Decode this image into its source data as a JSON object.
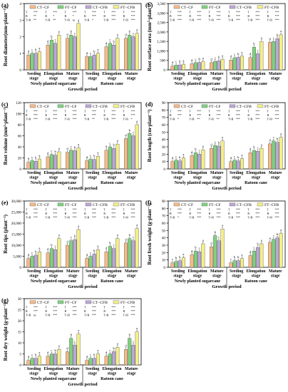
{
  "legend": [
    "CT−CF",
    "FT−CF",
    "CT−CFB",
    "FT−CFB"
  ],
  "colors": [
    "#f5b987",
    "#7fd17f",
    "#b9a8d8",
    "#f4ee8a"
  ],
  "stages": [
    "Seeding stage",
    "Elongation stage",
    "Mature stage"
  ],
  "groups": [
    "Newly planted sugarcane",
    "Ratoon cane"
  ],
  "xlabel": "Growth period",
  "chart_data": [
    {
      "type": "bar",
      "panel": "(a)",
      "ylabel": "Root diameter(mm·plant⁻¹)",
      "ylim": [
        0,
        4
      ],
      "yticks": [
        "0",
        "1",
        "2",
        "3",
        "4"
      ],
      "series": [
        {
          "name": "CT−CF",
          "values": [
            0.9,
            1.5,
            1.9,
            0.8,
            1.4,
            1.9
          ]
        },
        {
          "name": "FT−CF",
          "values": [
            1.0,
            1.8,
            2.1,
            0.8,
            1.6,
            2.1
          ]
        },
        {
          "name": "CT−CFB",
          "values": [
            1.0,
            1.6,
            2.0,
            0.9,
            1.5,
            2.0
          ]
        },
        {
          "name": "FT−CFB",
          "values": [
            1.1,
            2.1,
            2.8,
            1.0,
            1.9,
            2.2
          ]
        }
      ],
      "letters": [
        [
          "d",
          "c",
          "b",
          "a"
        ],
        [
          "d",
          "b",
          "c",
          "a"
        ],
        [
          "d",
          "b",
          "c",
          "a"
        ],
        [
          "d",
          "c",
          "b",
          "a"
        ],
        [
          "d",
          "c",
          "b",
          "a"
        ],
        [
          "d",
          "b",
          "c",
          "a"
        ]
      ],
      "stats": [
        [
          [
            "T",
            "***",
            "T",
            "***",
            "T",
            "***"
          ],
          [
            "B",
            "**",
            "B",
            "*",
            "B",
            "*"
          ],
          [
            "T×B",
            "**",
            "T×B",
            "**",
            "T×B",
            "ns"
          ]
        ],
        [
          [
            "T",
            "***",
            "T",
            "***",
            "T",
            "***"
          ],
          [
            "B",
            "***",
            "B",
            "***",
            "B",
            "***"
          ],
          [
            "T×B",
            "*",
            "T×B",
            "***",
            "T×B",
            "***"
          ]
        ]
      ]
    },
    {
      "type": "bar",
      "panel": "(b)",
      "ylabel": "Root surface area (mm²·plant⁻¹)",
      "ylim": [
        0,
        3500
      ],
      "yticks": [
        "0",
        "500",
        "1,000",
        "1,500",
        "2,000",
        "2,500",
        "3,000",
        "3,500"
      ],
      "series": [
        {
          "name": "CT−CF",
          "values": [
            200,
            320,
            380,
            520,
            650,
            1450
          ]
        },
        {
          "name": "FT−CF",
          "values": [
            250,
            380,
            450,
            640,
            1200,
            1500
          ]
        },
        {
          "name": "CT−CFB",
          "values": [
            260,
            390,
            480,
            660,
            850,
            1650
          ]
        },
        {
          "name": "FT−CFB",
          "values": [
            300,
            430,
            560,
            730,
            1500,
            1850
          ]
        }
      ],
      "letters": [
        [
          "d",
          "c",
          "b",
          "a"
        ],
        [
          "d",
          "c",
          "b",
          "a"
        ],
        [
          "d",
          "c",
          "b",
          "a"
        ],
        [
          "d",
          "c",
          "b",
          "a"
        ],
        [
          "d",
          "b",
          "c",
          "a"
        ],
        [
          "d",
          "c",
          "b",
          "a"
        ]
      ],
      "stats": [
        [
          [
            "T",
            "***",
            "T",
            "***",
            "T",
            "***"
          ],
          [
            "B",
            "***",
            "B",
            "***",
            "B",
            "***"
          ],
          [
            "T×B",
            "***",
            "T×B",
            "***",
            "T×B",
            "***"
          ]
        ],
        [
          [
            "T",
            "***",
            "T",
            "***",
            "T",
            "***"
          ],
          [
            "B",
            "***",
            "B",
            "***",
            "B",
            "***"
          ],
          [
            "T×B",
            "***",
            "T×B",
            "***",
            "T×B",
            "***"
          ]
        ]
      ]
    },
    {
      "type": "bar",
      "panel": "(c)",
      "ylabel": "Root volume (mm³·plant⁻¹)",
      "ylim": [
        0,
        120
      ],
      "yticks": [
        "0",
        "20",
        "40",
        "60",
        "80",
        "100",
        "120"
      ],
      "series": [
        {
          "name": "CT−CF",
          "values": [
            12,
            22,
            30,
            15,
            34,
            55
          ]
        },
        {
          "name": "FT−CF",
          "values": [
            15,
            26,
            34,
            18,
            40,
            64
          ]
        },
        {
          "name": "CT−CFB",
          "values": [
            14,
            25,
            33,
            17,
            37,
            60
          ]
        },
        {
          "name": "FT−CFB",
          "values": [
            18,
            31,
            38,
            23,
            45,
            80
          ]
        }
      ],
      "letters": [
        [
          "d",
          "c",
          "b",
          "a"
        ],
        [
          "d",
          "c",
          "b",
          "a"
        ],
        [
          "d",
          "c",
          "b",
          "a"
        ],
        [
          "d",
          "c",
          "b",
          "a"
        ],
        [
          "d",
          "c",
          "b",
          "a"
        ],
        [
          "d",
          "b",
          "c",
          "a"
        ]
      ],
      "stats": [
        [
          [
            "T",
            "***",
            "T",
            "***",
            "T",
            "***"
          ],
          [
            "B",
            "***",
            "B",
            "***",
            "B",
            "***"
          ],
          [
            "T×B",
            "***",
            "T×B",
            "***",
            "T×B",
            "***"
          ]
        ],
        [
          [
            "T",
            "***",
            "T",
            "***",
            "T",
            "***"
          ],
          [
            "B",
            "***",
            "B",
            "***",
            "B",
            "***"
          ],
          [
            "T×B",
            "**",
            "T×B",
            "***",
            "T×B",
            "*"
          ]
        ]
      ]
    },
    {
      "type": "bar",
      "panel": "(d)",
      "ylabel": "Root length (cm·plant⁻¹)",
      "ylim": [
        0,
        90
      ],
      "yticks": [
        "0",
        "10",
        "20",
        "30",
        "40",
        "50",
        "60",
        "70",
        "80",
        "90"
      ],
      "series": [
        {
          "name": "CT−CF",
          "values": [
            10,
            18,
            28,
            10,
            22,
            34
          ]
        },
        {
          "name": "FT−CF",
          "values": [
            12,
            22,
            32,
            12,
            25,
            38
          ]
        },
        {
          "name": "CT−CFB",
          "values": [
            11,
            20,
            31,
            11,
            24,
            36
          ]
        },
        {
          "name": "FT−CFB",
          "values": [
            15,
            26,
            38,
            14,
            28,
            43
          ]
        }
      ],
      "letters": [
        [
          "d",
          "c",
          "b",
          "a"
        ],
        [
          "d",
          "b",
          "c",
          "a"
        ],
        [
          "d",
          "c",
          "b",
          "a"
        ],
        [
          "d",
          "c",
          "b",
          "a"
        ],
        [
          "d",
          "b",
          "c",
          "a"
        ],
        [
          "d",
          "c",
          "b",
          "a"
        ]
      ],
      "stats": [
        [
          [
            "T",
            "***",
            "T",
            "***",
            "T",
            "***"
          ],
          [
            "B",
            "***",
            "B",
            "***",
            "B",
            "***"
          ],
          [
            "T×B",
            "*",
            "T×B",
            "**",
            "T×B",
            "**"
          ]
        ],
        [
          [
            "T",
            "***",
            "T",
            "***",
            "T",
            "***"
          ],
          [
            "B",
            "***",
            "B",
            "***",
            "B",
            "***"
          ],
          [
            "T×B",
            "***",
            "T×B",
            "***",
            "T×B",
            "***"
          ]
        ]
      ]
    },
    {
      "type": "bar",
      "panel": "(e)",
      "ylabel": "Root tips (plant⁻¹)",
      "ylim": [
        0,
        30000
      ],
      "yticks": [
        "0",
        "5,000",
        "10,000",
        "15,000",
        "20,000",
        "25,000",
        "30,000"
      ],
      "series": [
        {
          "name": "CT−CF",
          "values": [
            4000,
            6500,
            10000,
            4000,
            7000,
            11000
          ]
        },
        {
          "name": "FT−CF",
          "values": [
            5000,
            8500,
            12000,
            5000,
            9500,
            13000
          ]
        },
        {
          "name": "CT−CFB",
          "values": [
            5500,
            8000,
            12500,
            6000,
            8500,
            12000
          ]
        },
        {
          "name": "FT−CFB",
          "values": [
            7000,
            13000,
            17000,
            8000,
            13000,
            17500
          ]
        }
      ],
      "letters": [
        [
          "d",
          "c",
          "b",
          "a"
        ],
        [
          "d",
          "b",
          "c",
          "a"
        ],
        [
          "d",
          "c",
          "b",
          "a"
        ],
        [
          "d",
          "c",
          "b",
          "a"
        ],
        [
          "d",
          "b",
          "c",
          "a"
        ],
        [
          "d",
          "b",
          "c",
          "a"
        ]
      ],
      "stats": [
        [
          [
            "T",
            "***",
            "T",
            "***",
            "T",
            "***"
          ],
          [
            "B",
            "***",
            "B",
            "***",
            "B",
            "***"
          ],
          [
            "T×B",
            "***",
            "T×B",
            "***",
            "T×B",
            "***"
          ]
        ],
        [
          [
            "T",
            "***",
            "T",
            "***",
            "T",
            "***"
          ],
          [
            "B",
            "***",
            "B",
            "***",
            "B",
            "***"
          ],
          [
            "T×B",
            "***",
            "T×B",
            "***",
            "T×B",
            "***"
          ]
        ]
      ]
    },
    {
      "type": "bar",
      "panel": "(f)",
      "ylabel": "Root fresh weight (g·plant⁻¹)",
      "ylim": [
        0,
        90
      ],
      "yticks": [
        "0",
        "10",
        "20",
        "30",
        "40",
        "50",
        "60",
        "70",
        "80",
        "90"
      ],
      "series": [
        {
          "name": "CT−CF",
          "values": [
            6,
            17,
            28,
            6,
            16,
            34
          ]
        },
        {
          "name": "FT−CF",
          "values": [
            8,
            22,
            43,
            9,
            22,
            38
          ]
        },
        {
          "name": "CT−CFB",
          "values": [
            9,
            21,
            36,
            9,
            27,
            40
          ]
        },
        {
          "name": "FT−CFB",
          "values": [
            13,
            32,
            52,
            12,
            32,
            46
          ]
        }
      ],
      "letters": [
        [
          "c",
          "b",
          "b",
          "a"
        ],
        [
          "d",
          "b",
          "c",
          "a"
        ],
        [
          "d",
          "b",
          "c",
          "a"
        ],
        [
          "c",
          "b",
          "b",
          "a"
        ],
        [
          "d",
          "c",
          "b",
          "a"
        ],
        [
          "d",
          "c",
          "b",
          "a"
        ]
      ],
      "stats": [
        [
          [
            "T",
            "***",
            "T",
            "***",
            "T",
            "***"
          ],
          [
            "B",
            "***",
            "B",
            "***",
            "B",
            "***"
          ],
          [
            "T×B",
            "*",
            "T×B",
            "***",
            "T×B",
            "***"
          ]
        ],
        [
          [
            "T",
            "***",
            "T",
            "***",
            "T",
            "***"
          ],
          [
            "B",
            "***",
            "B",
            "***",
            "B",
            "***"
          ],
          [
            "T×B",
            "***",
            "T×B",
            "***",
            "T×B",
            "***"
          ]
        ]
      ]
    },
    {
      "type": "bar",
      "panel": "(g)",
      "ylabel": "Root dry weight (g·plant⁻¹)",
      "ylim": [
        0,
        30
      ],
      "yticks": [
        "0",
        "5",
        "10",
        "15",
        "20",
        "25",
        "30"
      ],
      "series": [
        {
          "name": "CT−CF",
          "values": [
            2,
            4,
            6,
            2,
            4,
            7
          ]
        },
        {
          "name": "FT−CF",
          "values": [
            3,
            5,
            12,
            3,
            5,
            12
          ]
        },
        {
          "name": "CT−CFB",
          "values": [
            3,
            5,
            9,
            3,
            6,
            9
          ]
        },
        {
          "name": "FT−CFB",
          "values": [
            4,
            7,
            14,
            5,
            8,
            15
          ]
        }
      ],
      "letters": [
        [
          "d",
          "c",
          "b",
          "a"
        ],
        [
          "d",
          "c",
          "b",
          "a"
        ],
        [
          "d",
          "b",
          "c",
          "a"
        ],
        [
          "d",
          "c",
          "b",
          "a"
        ],
        [
          "d",
          "c",
          "b",
          "a"
        ],
        [
          "d",
          "b",
          "c",
          "a"
        ]
      ],
      "stats": [
        [
          [
            "T",
            "***",
            "T",
            "***",
            "T",
            "***"
          ],
          [
            "B",
            "***",
            "B",
            "***",
            "B",
            "***"
          ],
          [
            "T×B",
            "ns",
            "T×B",
            "***",
            "T×B",
            "***"
          ]
        ],
        [
          [
            "T",
            "***",
            "T",
            "***",
            "T",
            "***"
          ],
          [
            "B",
            "***",
            "B",
            "***",
            "B",
            "***"
          ],
          [
            "T×B",
            "***",
            "T×B",
            "***",
            "T×B",
            "***"
          ]
        ]
      ]
    }
  ]
}
